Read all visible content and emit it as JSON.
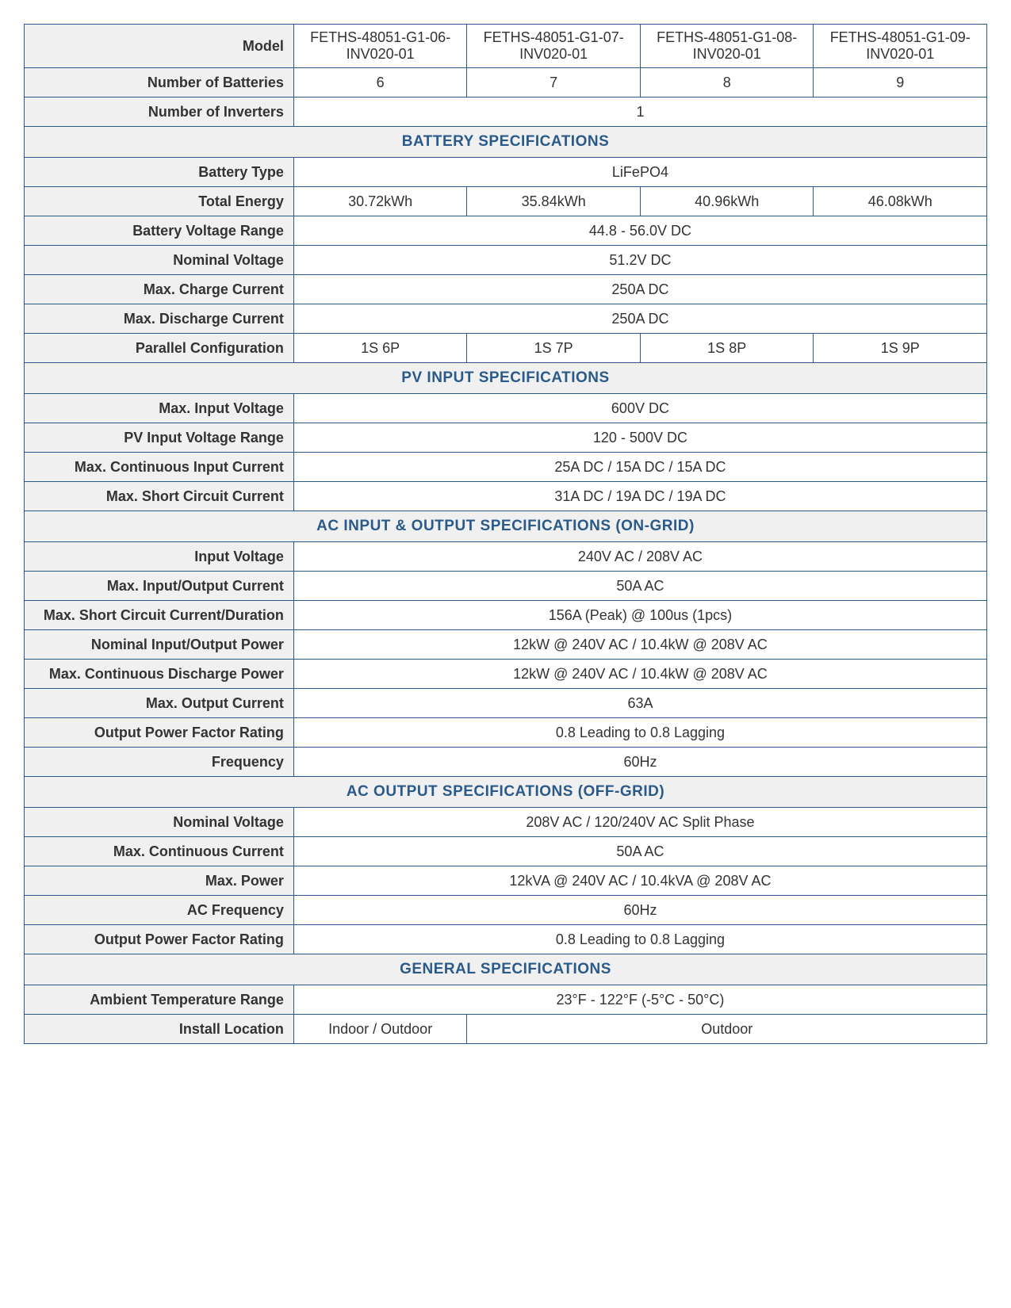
{
  "colors": {
    "border": "#2a5a8a",
    "header_text": "#2a5a8a",
    "label_bg": "#f0f0f0",
    "data_bg": "#ffffff",
    "text": "#333333"
  },
  "columns": 4,
  "header": {
    "model_label": "Model",
    "models": [
      "FETHS-48051-G1-06-INV020-01",
      "FETHS-48051-G1-07-INV020-01",
      "FETHS-48051-G1-08-INV020-01",
      "FETHS-48051-G1-09-INV020-01"
    ],
    "num_batt_label": "Number of Batteries",
    "num_batt": [
      "6",
      "7",
      "8",
      "9"
    ],
    "num_inv_label": "Number of Inverters",
    "num_inv": "1"
  },
  "sections": {
    "battery": {
      "title": "BATTERY SPECIFICATIONS",
      "type_label": "Battery Type",
      "type": "LiFePO4",
      "energy_label": "Total Energy",
      "energy": [
        "30.72kWh",
        "35.84kWh",
        "40.96kWh",
        "46.08kWh"
      ],
      "vrange_label": "Battery Voltage Range",
      "vrange": "44.8 - 56.0V DC",
      "nomv_label": "Nominal Voltage",
      "nomv": "51.2V DC",
      "maxcharge_label": "Max. Charge Current",
      "maxcharge": "250A DC",
      "maxdisch_label": "Max. Discharge Current",
      "maxdisch": "250A DC",
      "parallel_label": "Parallel Configuration",
      "parallel": [
        "1S 6P",
        "1S 7P",
        "1S 8P",
        "1S 9P"
      ]
    },
    "pv": {
      "title": "PV INPUT SPECIFICATIONS",
      "maxinv_label": "Max. Input Voltage",
      "maxinv": "600V DC",
      "pvrange_label": "PV Input Voltage Range",
      "pvrange": "120 - 500V DC",
      "maxcic_label": "Max. Continuous Input Current",
      "maxcic": "25A DC / 15A DC / 15A DC",
      "maxsc_label": "Max. Short Circuit Current",
      "maxsc": "31A DC / 19A DC / 19A DC"
    },
    "ac_on": {
      "title": "AC INPUT & OUTPUT SPECIFICATIONS (ON-GRID)",
      "inv_label": "Input Voltage",
      "inv": "240V AC / 208V AC",
      "maxioc_label": "Max. Input/Output Current",
      "maxioc": "50A AC",
      "maxscd_label": "Max. Short Circuit Current/Duration",
      "maxscd": "156A (Peak) @ 100us (1pcs)",
      "niop_label": "Nominal Input/Output Power",
      "niop": "12kW @ 240V AC / 10.4kW @ 208V AC",
      "mcdp_label": "Max. Continuous Discharge Power",
      "mcdp": "12kW @ 240V AC / 10.4kW @ 208V AC",
      "moc_label": "Max. Output Current",
      "moc": "63A",
      "opfr_label": "Output Power Factor Rating",
      "opfr": "0.8 Leading to 0.8 Lagging",
      "freq_label": "Frequency",
      "freq": "60Hz"
    },
    "ac_off": {
      "title": "AC OUTPUT SPECIFICATIONS (OFF-GRID)",
      "nomv_label": "Nominal Voltage",
      "nomv": "208V AC / 120/240V AC Split Phase",
      "mcc_label": "Max. Continuous Current",
      "mcc": "50A AC",
      "mp_label": "Max. Power",
      "mp": "12kVA @ 240V AC / 10.4kVA @ 208V AC",
      "acfreq_label": "AC Frequency",
      "acfreq": "60Hz",
      "opfr_label": "Output Power Factor Rating",
      "opfr": "0.8 Leading to 0.8 Lagging"
    },
    "general": {
      "title": "GENERAL SPECIFICATIONS",
      "temp_label": "Ambient Temperature Range",
      "temp": "23°F - 122°F (-5°C - 50°C)",
      "loc_label": "Install Location",
      "loc1": "Indoor / Outdoor",
      "loc2": "Outdoor"
    }
  }
}
